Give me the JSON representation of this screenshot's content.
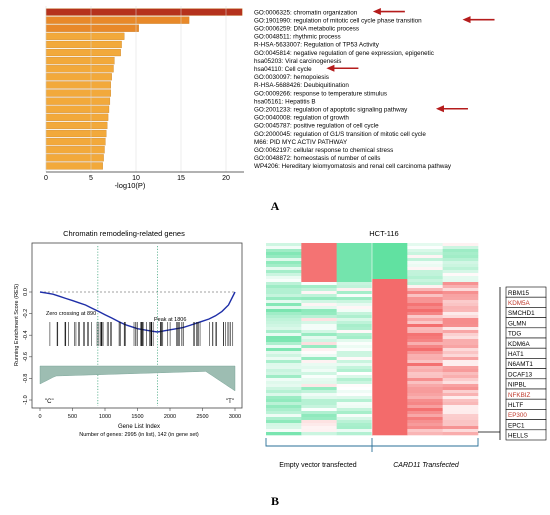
{
  "panel_labels": {
    "a": "A",
    "b": "B"
  },
  "chart_data": [
    {
      "type": "bar",
      "orientation": "horizontal",
      "title": "",
      "xlabel": "-log10(P)",
      "ylabel": "",
      "xlim": [
        0,
        22
      ],
      "xticks": [
        0,
        5,
        10,
        15,
        20
      ],
      "grid": true,
      "categories": [
        "GO:0006325: chromatin organization",
        "GO:1901990: regulation of mitotic cell cycle phase transition",
        "GO:0006259: DNA metabolic process",
        "GO:0048511: rhythmic process",
        "R-HSA-5633007: Regulation of TP53 Activity",
        "GO:0045814: negative regulation of gene expression, epigenetic",
        "hsa05203: Viral carcinogenesis",
        "hsa04110: Cell cycle",
        "GO:0030097: hemopoiesis",
        "R-HSA-5688426: Deubiquitination",
        "GO:0009266: response to temperature stimulus",
        "hsa05161: Hepatitis B",
        "GO:2001233: regulation of apoptotic signaling pathway",
        "GO:0040008: regulation of growth",
        "GO:0045787: positive regulation of cell cycle",
        "GO:2000045: regulation of G1/S transition of mitotic cell cycle",
        "M66: PID MYC ACTIV PATHWAY",
        "GO:0062197: cellular response to chemical stress",
        "GO:0048872: homeostasis of number of cells",
        "WP4206: Hereditary leiomyomatosis and renal cell carcinoma pathway"
      ],
      "values": [
        21.8,
        15.9,
        10.3,
        8.7,
        8.4,
        8.3,
        7.6,
        7.5,
        7.3,
        7.2,
        7.2,
        7.1,
        7.0,
        6.9,
        6.8,
        6.7,
        6.6,
        6.5,
        6.4,
        6.3
      ],
      "highlighted": [
        "GO:0006325: chromatin organization",
        "GO:1901990: regulation of mitotic cell cycle phase transition",
        "hsa04110: Cell cycle",
        "GO:2001233: regulation of apoptotic signaling pathway"
      ],
      "colors": {
        "top": "#b5321d",
        "mid": "#e8892a",
        "low": "#f2a93b",
        "arrow": "#b51c1c"
      }
    },
    {
      "type": "line",
      "title": "Chromatin remodeling-related genes",
      "xlabel": "Gene List Index",
      "ylabel": "Running Enrichment Score (RES)",
      "xlim": [
        0,
        3000
      ],
      "ylim": [
        -1.0,
        0.0
      ],
      "xticks": [
        0,
        500,
        1000,
        1500,
        2000,
        2500,
        3000
      ],
      "yticks": [
        0.0,
        -0.2,
        -0.4,
        -0.6,
        -0.8,
        -1.0
      ],
      "footer": "Number of genes: 2995 (in list), 142 (in gene set)",
      "annotations": [
        "Zero crossing at 890",
        "Peak at 1806"
      ],
      "end_labels": [
        "\"C\"",
        "\"T\""
      ],
      "vlines": [
        890,
        1806
      ],
      "x": [
        0,
        100,
        200,
        300,
        400,
        500,
        600,
        700,
        800,
        900,
        1000,
        1100,
        1200,
        1300,
        1400,
        1500,
        1600,
        1700,
        1806,
        1900,
        2000,
        2100,
        2200,
        2300,
        2400,
        2500,
        2600,
        2700,
        2800,
        2900,
        3000
      ],
      "y": [
        0.0,
        -0.01,
        -0.02,
        -0.04,
        -0.06,
        -0.08,
        -0.1,
        -0.12,
        -0.15,
        -0.18,
        -0.21,
        -0.24,
        -0.27,
        -0.3,
        -0.32,
        -0.34,
        -0.35,
        -0.36,
        -0.37,
        -0.36,
        -0.35,
        -0.34,
        -0.33,
        -0.31,
        -0.29,
        -0.27,
        -0.25,
        -0.22,
        -0.18,
        -0.12,
        0.0
      ],
      "line_color": "#1f2fa8"
    }
  ],
  "heatmap": {
    "title": "HCT-116",
    "group_labels": [
      "Empty vector transfected",
      "CARD11 Transfected"
    ],
    "genes": [
      "RBM15",
      "KDM5A",
      "SMCHD1",
      "GLMN",
      "TDG",
      "KDM6A",
      "HAT1",
      "N6AMT1",
      "DCAF13",
      "NIPBL",
      "NFKBIZ",
      "HLTF",
      "EP300",
      "EPC1",
      "HELLS"
    ],
    "highlighted_genes": [
      "KDM5A",
      "NFKBIZ",
      "EP300"
    ],
    "colors": {
      "red": "#f25a5a",
      "green": "#39d98a",
      "highlight_text": "#c0392b",
      "bracket": "#2a6f97"
    }
  }
}
